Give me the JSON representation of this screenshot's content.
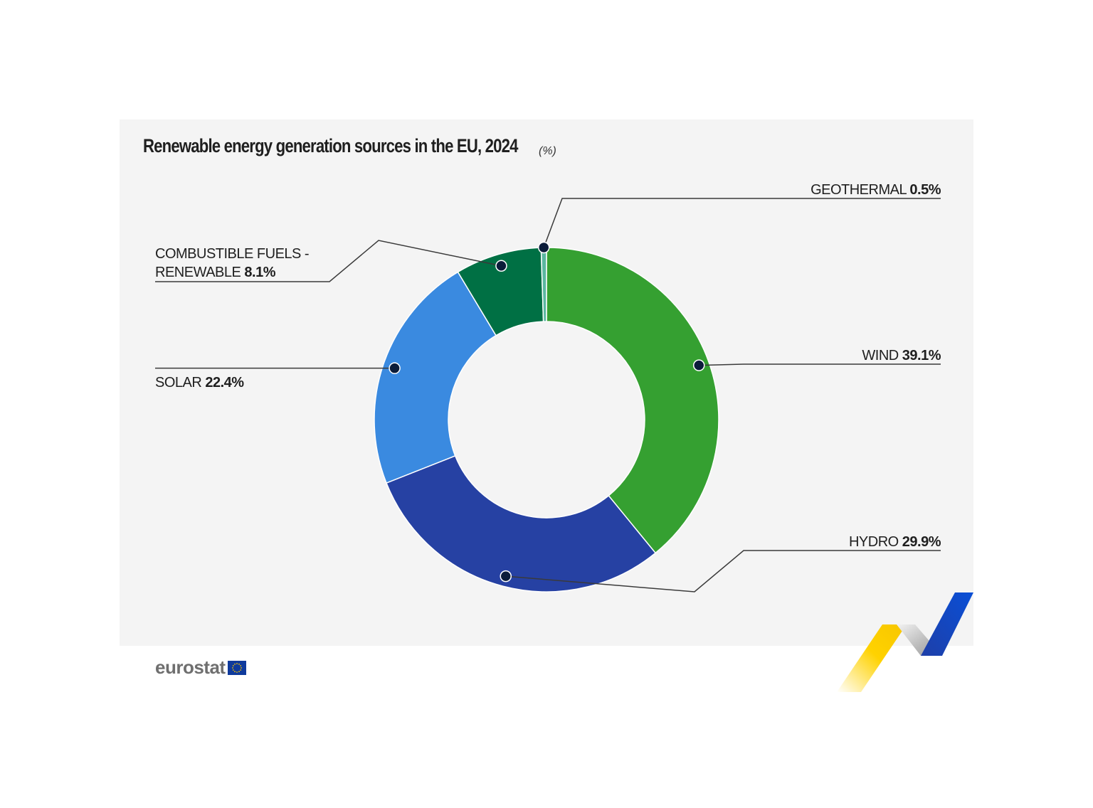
{
  "title": "Renewable energy generation sources in the EU, 2024",
  "unit": "(%)",
  "logo_text": "eurostat",
  "colors": {
    "panel": "#f4f4f4",
    "wind": "#35a031",
    "hydro": "#2641a3",
    "solar": "#3a8ae0",
    "combustible": "#007044",
    "geothermal": "#5bb7a0",
    "marker": "#0b1c3a",
    "leader": "#3a3a3a"
  },
  "chart_data": {
    "type": "pie",
    "title": "Renewable energy generation sources in the EU, 2024",
    "unit": "(%)",
    "slices": [
      {
        "name": "WIND",
        "value": 39.1,
        "label_lines": [
          "WIND"
        ]
      },
      {
        "name": "HYDRO",
        "value": 29.9,
        "label_lines": [
          "HYDRO"
        ]
      },
      {
        "name": "SOLAR",
        "value": 22.4,
        "label_lines": [
          "SOLAR"
        ]
      },
      {
        "name": "COMBUSTIBLE FUELS - RENEWABLE",
        "value": 8.1,
        "label_lines": [
          "COMBUSTIBLE FUELS -",
          "RENEWABLE"
        ]
      },
      {
        "name": "GEOTHERMAL",
        "value": 0.5,
        "label_lines": [
          "GEOTHERMAL"
        ]
      }
    ]
  }
}
